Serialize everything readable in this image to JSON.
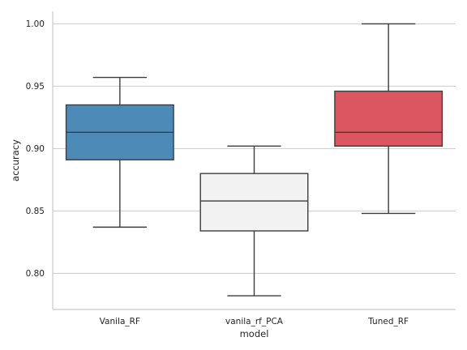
{
  "chart_data": {
    "type": "box",
    "xlabel": "model",
    "ylabel": "accuracy",
    "ylim": [
      0.771,
      1.01
    ],
    "yticks": [
      0.8,
      0.85,
      0.9,
      0.95,
      1.0
    ],
    "ytick_labels": [
      "0.80",
      "0.85",
      "0.90",
      "0.95",
      "1.00"
    ],
    "grid": "horizontal",
    "categories": [
      "Vanila_RF",
      "vanila_rf_PCA",
      "Tuned_RF"
    ],
    "series": [
      {
        "category": "Vanila_RF",
        "min": 0.837,
        "q1": 0.891,
        "median": 0.913,
        "q3": 0.935,
        "max": 0.957,
        "color": "#4e8ab8"
      },
      {
        "category": "vanila_rf_PCA",
        "min": 0.782,
        "q1": 0.834,
        "median": 0.858,
        "q3": 0.88,
        "max": 0.902,
        "color": "#f2f2f2"
      },
      {
        "category": "Tuned_RF",
        "min": 0.848,
        "q1": 0.902,
        "median": 0.913,
        "q3": 0.946,
        "max": 1.0,
        "color": "#db5661"
      }
    ]
  }
}
